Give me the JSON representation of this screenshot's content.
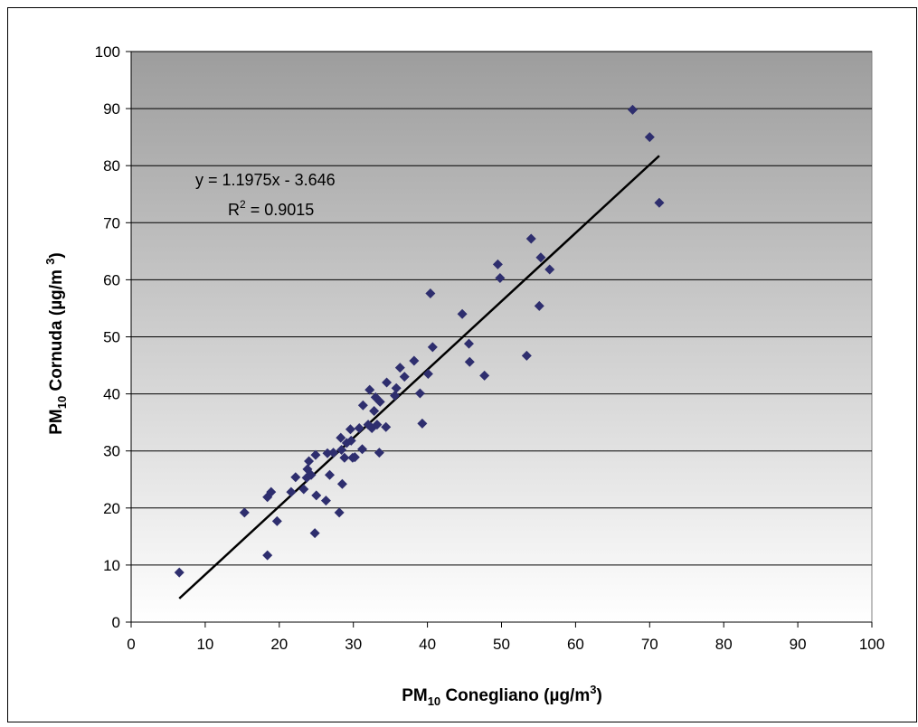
{
  "chart_data": {
    "type": "scatter",
    "xlabel": {
      "prefix": "PM",
      "sub": "10",
      "main": " Conegliano (µg/m",
      "sup": "3",
      "suffix": ")"
    },
    "ylabel": {
      "prefix": "PM",
      "sub": "10",
      "main": " Cornuda (µg/m ",
      "sup": "3",
      "suffix": ")"
    },
    "xlim": [
      0,
      100
    ],
    "ylim": [
      0,
      100
    ],
    "xticks": [
      0,
      10,
      20,
      30,
      40,
      50,
      60,
      70,
      80,
      90,
      100
    ],
    "yticks": [
      0,
      10,
      20,
      30,
      40,
      50,
      60,
      70,
      80,
      90,
      100
    ],
    "grid": "horizontal",
    "background": "vertical gradient, grey at top to white at bottom",
    "colors": {
      "marker": "#2e2e6e",
      "trendline": "#000000",
      "gradient_top": "#9d9d9d",
      "gradient_bottom": "#ffffff",
      "gridline": "#000000"
    },
    "marker_shape": "diamond",
    "trendline": {
      "equation": "y = 1.1975x - 3.646",
      "r2_prefix": "R",
      "r2_sup": "2",
      "r2_value": " = 0.9015",
      "slope": 1.1975,
      "intercept": -3.646,
      "x_range": [
        6.5,
        71.3
      ]
    },
    "points": [
      {
        "x": 6.5,
        "y": 8.7
      },
      {
        "x": 15.3,
        "y": 19.2
      },
      {
        "x": 18.4,
        "y": 11.7
      },
      {
        "x": 18.4,
        "y": 21.9
      },
      {
        "x": 18.9,
        "y": 22.8
      },
      {
        "x": 19.7,
        "y": 17.7
      },
      {
        "x": 21.6,
        "y": 22.8
      },
      {
        "x": 22.2,
        "y": 25.4
      },
      {
        "x": 23.3,
        "y": 23.3
      },
      {
        "x": 23.7,
        "y": 25.3
      },
      {
        "x": 23.8,
        "y": 26.8
      },
      {
        "x": 24.0,
        "y": 28.2
      },
      {
        "x": 24.3,
        "y": 25.8
      },
      {
        "x": 24.8,
        "y": 15.6
      },
      {
        "x": 24.9,
        "y": 29.3
      },
      {
        "x": 25.0,
        "y": 22.2
      },
      {
        "x": 26.3,
        "y": 21.3
      },
      {
        "x": 26.5,
        "y": 29.6
      },
      {
        "x": 26.8,
        "y": 25.8
      },
      {
        "x": 27.3,
        "y": 29.7
      },
      {
        "x": 28.1,
        "y": 19.2
      },
      {
        "x": 28.3,
        "y": 32.3
      },
      {
        "x": 28.4,
        "y": 30.2
      },
      {
        "x": 28.5,
        "y": 24.2
      },
      {
        "x": 28.8,
        "y": 28.8
      },
      {
        "x": 29.1,
        "y": 31.4
      },
      {
        "x": 29.6,
        "y": 33.8
      },
      {
        "x": 29.7,
        "y": 31.8
      },
      {
        "x": 29.9,
        "y": 28.8
      },
      {
        "x": 30.2,
        "y": 28.9
      },
      {
        "x": 30.8,
        "y": 34.0
      },
      {
        "x": 31.2,
        "y": 30.3
      },
      {
        "x": 31.3,
        "y": 38.0
      },
      {
        "x": 32.0,
        "y": 34.6
      },
      {
        "x": 32.2,
        "y": 40.7
      },
      {
        "x": 32.5,
        "y": 34.0
      },
      {
        "x": 32.8,
        "y": 37.0
      },
      {
        "x": 33.0,
        "y": 39.4
      },
      {
        "x": 33.2,
        "y": 34.6
      },
      {
        "x": 33.5,
        "y": 29.7
      },
      {
        "x": 33.6,
        "y": 38.6
      },
      {
        "x": 34.4,
        "y": 34.2
      },
      {
        "x": 34.5,
        "y": 42.0
      },
      {
        "x": 35.6,
        "y": 39.7
      },
      {
        "x": 35.8,
        "y": 41.0
      },
      {
        "x": 36.3,
        "y": 44.6
      },
      {
        "x": 36.9,
        "y": 43.0
      },
      {
        "x": 38.2,
        "y": 45.8
      },
      {
        "x": 39.0,
        "y": 40.1
      },
      {
        "x": 39.3,
        "y": 34.8
      },
      {
        "x": 40.1,
        "y": 43.5
      },
      {
        "x": 40.4,
        "y": 57.6
      },
      {
        "x": 40.7,
        "y": 48.2
      },
      {
        "x": 44.7,
        "y": 54.0
      },
      {
        "x": 45.6,
        "y": 48.8
      },
      {
        "x": 45.7,
        "y": 45.6
      },
      {
        "x": 47.7,
        "y": 43.2
      },
      {
        "x": 49.5,
        "y": 62.7
      },
      {
        "x": 49.8,
        "y": 60.3
      },
      {
        "x": 53.4,
        "y": 46.7
      },
      {
        "x": 54.0,
        "y": 67.2
      },
      {
        "x": 55.1,
        "y": 55.4
      },
      {
        "x": 55.3,
        "y": 63.9
      },
      {
        "x": 56.5,
        "y": 61.8
      },
      {
        "x": 67.7,
        "y": 89.8
      },
      {
        "x": 70.0,
        "y": 85.0
      },
      {
        "x": 71.3,
        "y": 73.5
      }
    ]
  }
}
